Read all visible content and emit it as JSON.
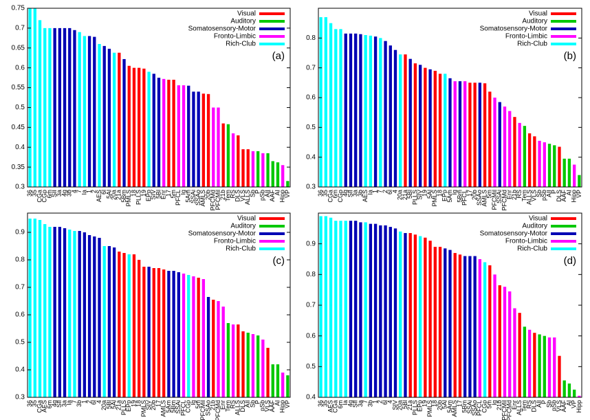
{
  "chart_data": [
    {
      "type": "bar",
      "panel_label": "(a)",
      "legend": [
        {
          "name": "Visual",
          "color": "#ff0000"
        },
        {
          "name": "Auditory",
          "color": "#00c800"
        },
        {
          "name": "Somatosensory-Motor",
          "color": "#0000b4"
        },
        {
          "name": "Fronto-Limbic",
          "color": "#ff00ff"
        },
        {
          "name": "Rich-Club",
          "color": "#00ffff"
        }
      ],
      "ylim": [
        0.3,
        0.75
      ],
      "yticks": [
        0.3,
        0.35,
        0.4,
        0.45,
        0.5,
        0.55,
        0.6,
        0.65,
        0.7,
        0.75
      ],
      "categories": [
        "36",
        "35",
        "CGa",
        "CGp",
        "6m",
        "SII",
        "3a",
        "4g",
        "3b",
        "4",
        "7",
        "Ia",
        "1",
        "2",
        "AES",
        "6l",
        "5Al",
        "20a",
        "21a",
        "5Bm",
        "PMLS",
        "18",
        "PLLS",
        "19",
        "EPp",
        "SIV",
        "5Bl",
        "Enr",
        "17",
        "5m",
        "PFCL",
        "Ig",
        "5Am",
        "SSAi",
        "SSAo",
        "AMLS",
        "20b",
        "PFCMd",
        "PFCMil",
        "21b",
        "Tem",
        "RS",
        "DLS",
        "VLS",
        "ALLS",
        "Sb",
        "P",
        "pSb",
        "AII",
        "AAF",
        "AI",
        "Hipp",
        "VP"
      ],
      "values": [
        0.75,
        0.75,
        0.72,
        0.7,
        0.7,
        0.7,
        0.7,
        0.7,
        0.7,
        0.695,
        0.69,
        0.68,
        0.68,
        0.678,
        0.66,
        0.655,
        0.648,
        0.638,
        0.638,
        0.622,
        0.605,
        0.6,
        0.6,
        0.598,
        0.59,
        0.585,
        0.575,
        0.572,
        0.57,
        0.57,
        0.556,
        0.556,
        0.555,
        0.54,
        0.54,
        0.535,
        0.534,
        0.5,
        0.5,
        0.46,
        0.458,
        0.435,
        0.43,
        0.395,
        0.395,
        0.39,
        0.39,
        0.385,
        0.385,
        0.365,
        0.362,
        0.355,
        0.315
      ],
      "colors": [
        "#00ffff",
        "#00ffff",
        "#00ffff",
        "#00ffff",
        "#00ffff",
        "#0000b4",
        "#0000b4",
        "#0000b4",
        "#0000b4",
        "#0000b4",
        "#00ffff",
        "#00ffff",
        "#0000b4",
        "#0000b4",
        "#00ffff",
        "#0000b4",
        "#0000b4",
        "#00ffff",
        "#ff0000",
        "#0000b4",
        "#ff0000",
        "#ff0000",
        "#ff0000",
        "#ff0000",
        "#00ffff",
        "#0000b4",
        "#0000b4",
        "#ff00ff",
        "#ff0000",
        "#ff0000",
        "#ff00ff",
        "#ff00ff",
        "#0000b4",
        "#0000b4",
        "#0000b4",
        "#ff0000",
        "#ff0000",
        "#ff00ff",
        "#ff00ff",
        "#ff0000",
        "#00c800",
        "#ff00ff",
        "#ff0000",
        "#ff0000",
        "#ff0000",
        "#ff00ff",
        "#00c800",
        "#ff00ff",
        "#00c800",
        "#00c800",
        "#00c800",
        "#ff00ff",
        "#00c800"
      ]
    },
    {
      "type": "bar",
      "panel_label": "(b)",
      "legend": [
        {
          "name": "Visual",
          "color": "#ff0000"
        },
        {
          "name": "Auditory",
          "color": "#00c800"
        },
        {
          "name": "Somatosensory-Motor",
          "color": "#0000b4"
        },
        {
          "name": "Fronto-Limbic",
          "color": "#ff00ff"
        },
        {
          "name": "Rich-Club",
          "color": "#00ffff"
        }
      ],
      "ylim": [
        0.3,
        0.9
      ],
      "yticks": [
        0.3,
        0.4,
        0.5,
        0.6,
        0.7,
        0.8
      ],
      "categories": [
        "36",
        "35",
        "CGa",
        "6m",
        "CGp",
        "4g",
        "SII",
        "3a",
        "3b",
        "AES",
        "Ia",
        "1",
        "7",
        "2",
        "6l",
        "4",
        "20a",
        "21a",
        "5Bl",
        "PLLS",
        "SIV",
        "19",
        "5Al",
        "PMLS",
        "18",
        "EPp",
        "5Am",
        "Ig",
        "5Bm",
        "PFCL",
        "17",
        "20b",
        "SSAo",
        "AMLS",
        "5m",
        "PFCMil",
        "SSAi",
        "PFCMd",
        "Enr",
        "21b",
        "RS",
        "Tem",
        "ALLS",
        "VLS",
        "Sb",
        "pSb",
        "AII",
        "P",
        "DLS",
        "AAF",
        "AI",
        "Hipp",
        "VP"
      ],
      "values": [
        0.87,
        0.87,
        0.85,
        0.83,
        0.83,
        0.815,
        0.815,
        0.815,
        0.813,
        0.81,
        0.808,
        0.805,
        0.8,
        0.79,
        0.775,
        0.76,
        0.745,
        0.745,
        0.73,
        0.715,
        0.71,
        0.7,
        0.695,
        0.69,
        0.68,
        0.68,
        0.665,
        0.655,
        0.655,
        0.655,
        0.65,
        0.65,
        0.65,
        0.648,
        0.62,
        0.6,
        0.585,
        0.57,
        0.555,
        0.535,
        0.515,
        0.505,
        0.48,
        0.47,
        0.455,
        0.45,
        0.445,
        0.44,
        0.435,
        0.395,
        0.395,
        0.375,
        0.34
      ],
      "colors": [
        "#00ffff",
        "#00ffff",
        "#00ffff",
        "#00ffff",
        "#00ffff",
        "#0000b4",
        "#0000b4",
        "#0000b4",
        "#0000b4",
        "#00ffff",
        "#00ffff",
        "#0000b4",
        "#00ffff",
        "#0000b4",
        "#0000b4",
        "#0000b4",
        "#00ffff",
        "#ff0000",
        "#0000b4",
        "#ff0000",
        "#0000b4",
        "#ff0000",
        "#0000b4",
        "#ff0000",
        "#ff0000",
        "#00ffff",
        "#0000b4",
        "#ff00ff",
        "#0000b4",
        "#ff00ff",
        "#ff0000",
        "#ff0000",
        "#0000b4",
        "#ff0000",
        "#ff0000",
        "#ff00ff",
        "#0000b4",
        "#ff00ff",
        "#ff00ff",
        "#ff0000",
        "#ff00ff",
        "#00c800",
        "#ff0000",
        "#ff0000",
        "#ff00ff",
        "#ff00ff",
        "#00c800",
        "#00c800",
        "#ff0000",
        "#00c800",
        "#00c800",
        "#ff00ff",
        "#00c800"
      ]
    },
    {
      "type": "bar",
      "panel_label": "(c)",
      "legend": [
        {
          "name": "Visual",
          "color": "#ff0000"
        },
        {
          "name": "Auditory",
          "color": "#00c800"
        },
        {
          "name": "Somatosensory-Motor",
          "color": "#0000b4"
        },
        {
          "name": "Fronto-Limbic",
          "color": "#ff00ff"
        },
        {
          "name": "Rich-Club",
          "color": "#00ffff"
        }
      ],
      "ylim": [
        0.3,
        0.97
      ],
      "yticks": [
        0.3,
        0.4,
        0.5,
        0.6,
        0.7,
        0.8,
        0.9
      ],
      "categories": [
        "36",
        "35",
        "CGa",
        "AES",
        "6m",
        "4g",
        "SII",
        "3a",
        "Ia",
        "7",
        "3b",
        "1",
        "2",
        "6l",
        "4",
        "20a",
        "5Bl",
        "5Al",
        "21a",
        "PLLS",
        "EPp",
        "19",
        "18",
        "PMLS",
        "SIV",
        "20b",
        "17",
        "AMLS",
        "5Am",
        "5Bm",
        "SSAi",
        "PFCL",
        "CGp",
        "Ig",
        "5m",
        "PFCMil",
        "SSAo",
        "21b",
        "PFCMd",
        "Enr",
        "Tem",
        "RS",
        "ALLS",
        "DLS",
        "AII",
        "Sb",
        "P",
        "pSb",
        "VLS",
        "AAF",
        "AI",
        "Hipp",
        "VP"
      ],
      "values": [
        0.95,
        0.95,
        0.945,
        0.93,
        0.92,
        0.92,
        0.92,
        0.915,
        0.91,
        0.905,
        0.905,
        0.9,
        0.89,
        0.885,
        0.88,
        0.85,
        0.85,
        0.845,
        0.83,
        0.825,
        0.82,
        0.82,
        0.8,
        0.775,
        0.775,
        0.77,
        0.77,
        0.765,
        0.76,
        0.76,
        0.755,
        0.75,
        0.745,
        0.74,
        0.735,
        0.73,
        0.665,
        0.655,
        0.65,
        0.63,
        0.57,
        0.565,
        0.565,
        0.54,
        0.535,
        0.53,
        0.525,
        0.51,
        0.48,
        0.42,
        0.42,
        0.39,
        0.38
      ],
      "colors": [
        "#00ffff",
        "#00ffff",
        "#00ffff",
        "#00ffff",
        "#00ffff",
        "#0000b4",
        "#0000b4",
        "#0000b4",
        "#00ffff",
        "#00ffff",
        "#0000b4",
        "#0000b4",
        "#0000b4",
        "#0000b4",
        "#0000b4",
        "#00ffff",
        "#0000b4",
        "#0000b4",
        "#ff0000",
        "#ff0000",
        "#00ffff",
        "#ff0000",
        "#ff0000",
        "#ff0000",
        "#0000b4",
        "#ff0000",
        "#ff0000",
        "#ff0000",
        "#0000b4",
        "#0000b4",
        "#0000b4",
        "#ff00ff",
        "#00ffff",
        "#ff00ff",
        "#ff0000",
        "#ff00ff",
        "#0000b4",
        "#ff0000",
        "#ff00ff",
        "#ff00ff",
        "#00c800",
        "#ff00ff",
        "#ff0000",
        "#ff0000",
        "#00c800",
        "#ff00ff",
        "#00c800",
        "#ff00ff",
        "#ff0000",
        "#00c800",
        "#00c800",
        "#ff00ff",
        "#00c800"
      ]
    },
    {
      "type": "bar",
      "panel_label": "(d)",
      "legend": [
        {
          "name": "Visual",
          "color": "#ff0000"
        },
        {
          "name": "Auditory",
          "color": "#00c800"
        },
        {
          "name": "Somatosensory-Motor",
          "color": "#0000b4"
        },
        {
          "name": "Fronto-Limbic",
          "color": "#ff00ff"
        },
        {
          "name": "Rich-Club",
          "color": "#00ffff"
        }
      ],
      "ylim": [
        0.4,
        1.0
      ],
      "yticks": [
        0.4,
        0.5,
        0.6,
        0.7,
        0.8,
        0.9
      ],
      "categories": [
        "36",
        "35",
        "AES",
        "CGa",
        "6m",
        "Ia",
        "4g",
        "SII",
        "3a",
        "7",
        "3b",
        "1",
        "2",
        "6l",
        "4",
        "SIV",
        "20a",
        "5Bl",
        "21a",
        "PLLS",
        "EPp",
        "19",
        "PMLS",
        "18",
        "20b",
        "5Al",
        "5Am",
        "AMLS",
        "17",
        "5Bm",
        "SSAi",
        "SSAo",
        "PFCL",
        "CGp",
        "5m",
        "Ig",
        "21b",
        "PFCMil",
        "PFCMd",
        "Enr",
        "ALLS",
        "Tem",
        "RS",
        "DLS",
        "AII",
        "P",
        "Sb",
        "pSb",
        "VLS",
        "AAF",
        "AI",
        "VP",
        "Hipp"
      ],
      "values": [
        0.99,
        0.99,
        0.985,
        0.975,
        0.975,
        0.975,
        0.975,
        0.975,
        0.97,
        0.97,
        0.965,
        0.965,
        0.96,
        0.96,
        0.955,
        0.95,
        0.94,
        0.935,
        0.935,
        0.93,
        0.925,
        0.92,
        0.91,
        0.89,
        0.89,
        0.885,
        0.88,
        0.87,
        0.865,
        0.86,
        0.86,
        0.86,
        0.85,
        0.84,
        0.83,
        0.8,
        0.765,
        0.76,
        0.745,
        0.69,
        0.675,
        0.63,
        0.62,
        0.61,
        0.605,
        0.6,
        0.595,
        0.595,
        0.535,
        0.455,
        0.445,
        0.425,
        0.405
      ],
      "colors": [
        "#00ffff",
        "#00ffff",
        "#00ffff",
        "#00ffff",
        "#00ffff",
        "#00ffff",
        "#0000b4",
        "#0000b4",
        "#0000b4",
        "#00ffff",
        "#0000b4",
        "#0000b4",
        "#0000b4",
        "#0000b4",
        "#0000b4",
        "#0000b4",
        "#00ffff",
        "#0000b4",
        "#ff0000",
        "#ff0000",
        "#00ffff",
        "#ff0000",
        "#ff0000",
        "#ff0000",
        "#ff0000",
        "#0000b4",
        "#0000b4",
        "#ff0000",
        "#ff0000",
        "#0000b4",
        "#0000b4",
        "#0000b4",
        "#ff00ff",
        "#00ffff",
        "#ff0000",
        "#ff00ff",
        "#ff0000",
        "#ff00ff",
        "#ff00ff",
        "#ff00ff",
        "#ff0000",
        "#00c800",
        "#ff00ff",
        "#ff0000",
        "#00c800",
        "#00c800",
        "#ff00ff",
        "#ff00ff",
        "#ff0000",
        "#00c800",
        "#00c800",
        "#00c800",
        "#ff00ff"
      ]
    }
  ]
}
